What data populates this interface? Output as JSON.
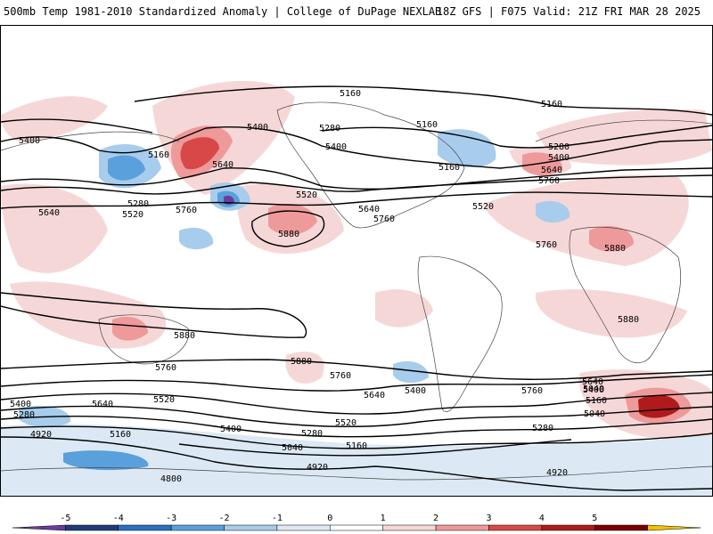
{
  "header": {
    "title": "500mb Temp 1981-2010 Standardized Anomaly | College of DuPage NEXLAB",
    "run_info": "18Z GFS | F075 Valid: 21Z FRI MAR 28 2025"
  },
  "colorbar": {
    "ticks": [
      "-5",
      "-4",
      "-3",
      "-2",
      "-1",
      "0",
      "1",
      "2",
      "3",
      "4",
      "5"
    ],
    "colors": [
      "#6a3d9a",
      "#1f3b7a",
      "#2a6fc0",
      "#5aa0dc",
      "#a8ccec",
      "#dce9f5",
      "#ffffff",
      "#f6d7d7",
      "#ee9a9a",
      "#d94848",
      "#b01a1a",
      "#7a0000",
      "#f2c200"
    ]
  },
  "contour_labels": [
    {
      "text": "5160"
    },
    {
      "text": "5160"
    },
    {
      "text": "5400"
    },
    {
      "text": "5280"
    },
    {
      "text": "5400"
    },
    {
      "text": "5160"
    },
    {
      "text": "5160"
    },
    {
      "text": "5640"
    },
    {
      "text": "5400"
    },
    {
      "text": "5160"
    },
    {
      "text": "5280"
    },
    {
      "text": "5520"
    },
    {
      "text": "5640"
    },
    {
      "text": "5760"
    },
    {
      "text": "5520"
    },
    {
      "text": "5640"
    },
    {
      "text": "5760"
    },
    {
      "text": "5520"
    },
    {
      "text": "5280"
    },
    {
      "text": "5400"
    },
    {
      "text": "5640"
    },
    {
      "text": "5760"
    },
    {
      "text": "5880"
    },
    {
      "text": "5760"
    },
    {
      "text": "5880"
    },
    {
      "text": "5880"
    },
    {
      "text": "5880"
    },
    {
      "text": "5880"
    },
    {
      "text": "5760"
    },
    {
      "text": "5760"
    },
    {
      "text": "5640"
    },
    {
      "text": "5400"
    },
    {
      "text": "5760"
    },
    {
      "text": "5640"
    },
    {
      "text": "5400"
    },
    {
      "text": "5160"
    },
    {
      "text": "5040"
    },
    {
      "text": "5400"
    },
    {
      "text": "5280"
    },
    {
      "text": "5640"
    },
    {
      "text": "5520"
    },
    {
      "text": "5520"
    },
    {
      "text": "5280"
    },
    {
      "text": "5400"
    },
    {
      "text": "4920"
    },
    {
      "text": "5160"
    },
    {
      "text": "5280"
    },
    {
      "text": "5040"
    },
    {
      "text": "5160"
    },
    {
      "text": "5040"
    },
    {
      "text": "4920"
    },
    {
      "text": "4800"
    },
    {
      "text": "4920"
    }
  ]
}
